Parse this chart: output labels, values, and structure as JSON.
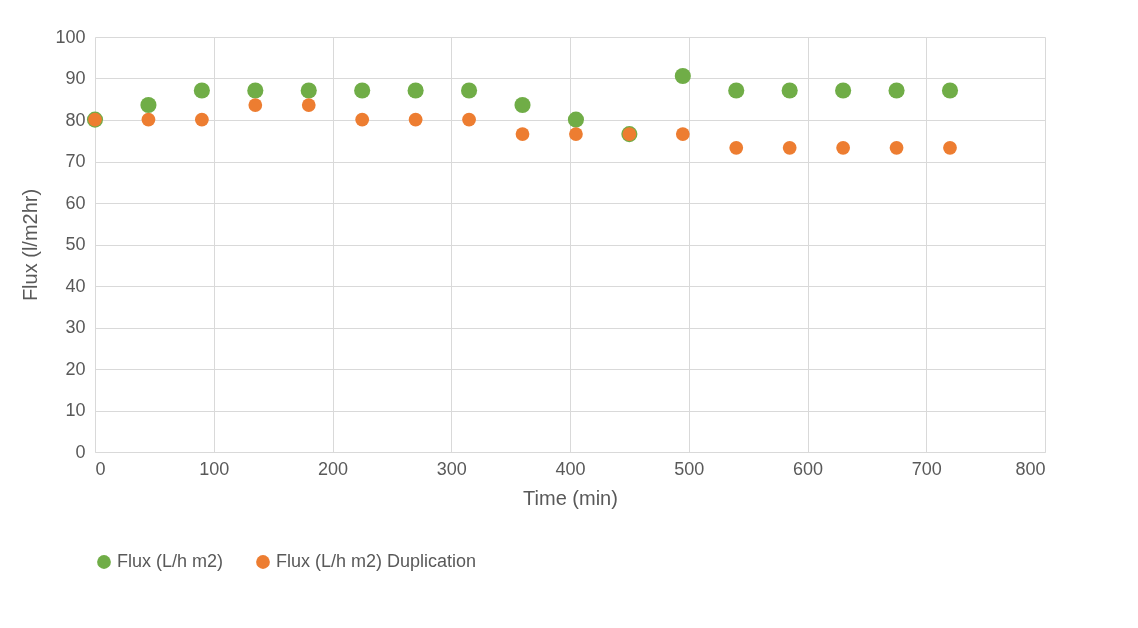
{
  "chart_data": {
    "type": "scatter",
    "xlabel": "Time (min)",
    "ylabel": "Flux (l/m2hr)",
    "x": [
      0,
      45,
      90,
      135,
      180,
      225,
      270,
      315,
      360,
      405,
      450,
      495,
      540,
      585,
      630,
      675,
      720
    ],
    "series": [
      {
        "name": "Flux (L/h m2)",
        "color": "#70ad47",
        "values": [
          80.1,
          83.6,
          87.1,
          87.1,
          87.1,
          87.1,
          87.1,
          87.1,
          83.6,
          80.1,
          76.6,
          90.6,
          87.1,
          87.1,
          87.1,
          87.1,
          87.1
        ]
      },
      {
        "name": "Flux (L/h m2) Duplication",
        "color": "#ed7d31",
        "values": [
          80.1,
          80.1,
          80.1,
          83.6,
          83.6,
          80.1,
          80.1,
          80.1,
          76.6,
          76.6,
          76.6,
          76.6,
          73.3,
          73.3,
          73.3,
          73.3,
          73.3
        ]
      }
    ],
    "xlim": [
      0,
      800
    ],
    "xticks": [
      0,
      100,
      200,
      300,
      400,
      500,
      600,
      700,
      800
    ],
    "ylim": [
      0,
      100
    ],
    "yticks": [
      0,
      10,
      20,
      30,
      40,
      50,
      60,
      70,
      80,
      90,
      100
    ],
    "grid": true,
    "legend": "bottom",
    "marker": "circle"
  }
}
